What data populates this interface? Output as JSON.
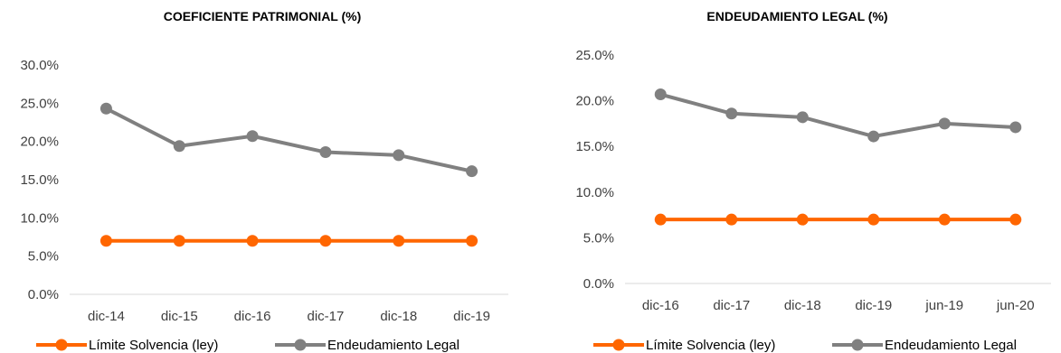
{
  "chart_data": [
    {
      "type": "line",
      "title": "COEFICIENTE PATRIMONIAL (%)",
      "categories": [
        "dic-14",
        "dic-15",
        "dic-16",
        "dic-17",
        "dic-18",
        "dic-19"
      ],
      "yticks": [
        "0.0%",
        "5.0%",
        "10.0%",
        "15.0%",
        "20.0%",
        "25.0%",
        "30.0%"
      ],
      "ylim": [
        0,
        30
      ],
      "legend_position": "bottom",
      "series": [
        {
          "name": "Límite Solvencia (ley)",
          "color": "#ff6600",
          "values": [
            7.0,
            7.0,
            7.0,
            7.0,
            7.0,
            7.0
          ]
        },
        {
          "name": "Endeudamiento Legal",
          "color": "#808080",
          "values": [
            24.3,
            19.4,
            20.7,
            18.6,
            18.2,
            16.1
          ]
        }
      ]
    },
    {
      "type": "line",
      "title": "ENDEUDAMIENTO LEGAL (%)",
      "categories": [
        "dic-16",
        "dic-17",
        "dic-18",
        "dic-19",
        "jun-19",
        "jun-20"
      ],
      "yticks": [
        "0.0%",
        "5.0%",
        "10.0%",
        "15.0%",
        "20.0%",
        "25.0%"
      ],
      "ylim": [
        0,
        25
      ],
      "legend_position": "bottom",
      "series": [
        {
          "name": "Límite Solvencia (ley)",
          "color": "#ff6600",
          "values": [
            7.0,
            7.0,
            7.0,
            7.0,
            7.0,
            7.0
          ]
        },
        {
          "name": "Endeudamiento Legal",
          "color": "#808080",
          "values": [
            20.7,
            18.6,
            18.2,
            16.1,
            17.5,
            17.1
          ]
        }
      ]
    }
  ]
}
